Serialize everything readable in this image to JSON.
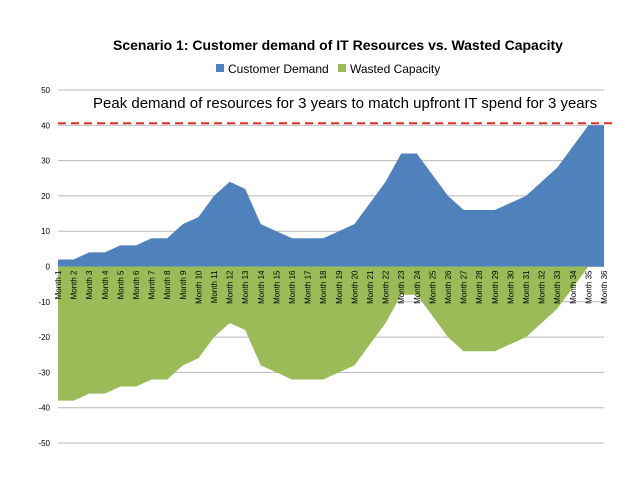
{
  "chart_data": {
    "type": "area",
    "title": "Scenario 1: Customer demand of IT Resources vs. Wasted Capacity",
    "annotation": "Peak demand of resources for 3 years to match upfront IT spend for 3 years",
    "reference_line": {
      "value": 40,
      "style": "dashed",
      "color": "#e0302a"
    },
    "categories": [
      "Month 1",
      "Month 2",
      "Month 3",
      "Month 4",
      "Month 5",
      "Month 6",
      "Month 7",
      "Month 8",
      "Month 9",
      "Month 10",
      "Month 11",
      "Month 12",
      "Month 13",
      "Month 14",
      "Month 15",
      "Month 16",
      "Month 17",
      "Month 18",
      "Month 19",
      "Month 20",
      "Month 21",
      "Month 22",
      "Month 23",
      "Month 24",
      "Month 25",
      "Month 26",
      "Month 27",
      "Month 28",
      "Month 29",
      "Month 30",
      "Month 31",
      "Month 32",
      "Month 33",
      "Month 34",
      "Month 35",
      "Month 36"
    ],
    "series": [
      {
        "name": "Customer Demand",
        "color": "#4f81bd",
        "values": [
          2,
          2,
          4,
          4,
          6,
          6,
          8,
          8,
          12,
          14,
          20,
          24,
          22,
          12,
          10,
          8,
          8,
          8,
          10,
          12,
          18,
          24,
          32,
          32,
          26,
          20,
          16,
          16,
          16,
          18,
          20,
          24,
          28,
          34,
          40,
          40
        ]
      },
      {
        "name": "Wasted Capacity",
        "color": "#9bbb59",
        "values": [
          -38,
          -38,
          -36,
          -36,
          -34,
          -34,
          -32,
          -32,
          -28,
          -26,
          -20,
          -16,
          -18,
          -28,
          -30,
          -32,
          -32,
          -32,
          -30,
          -28,
          -22,
          -16,
          -8,
          -8,
          -14,
          -20,
          -24,
          -24,
          -24,
          -22,
          -20,
          -16,
          -12,
          -6,
          0,
          0
        ]
      }
    ],
    "ylim": [
      -50,
      50
    ],
    "yticks": [
      50,
      40,
      30,
      20,
      10,
      0,
      -10,
      -20,
      -30,
      -40,
      -50
    ],
    "grid": true,
    "legend": "top"
  }
}
